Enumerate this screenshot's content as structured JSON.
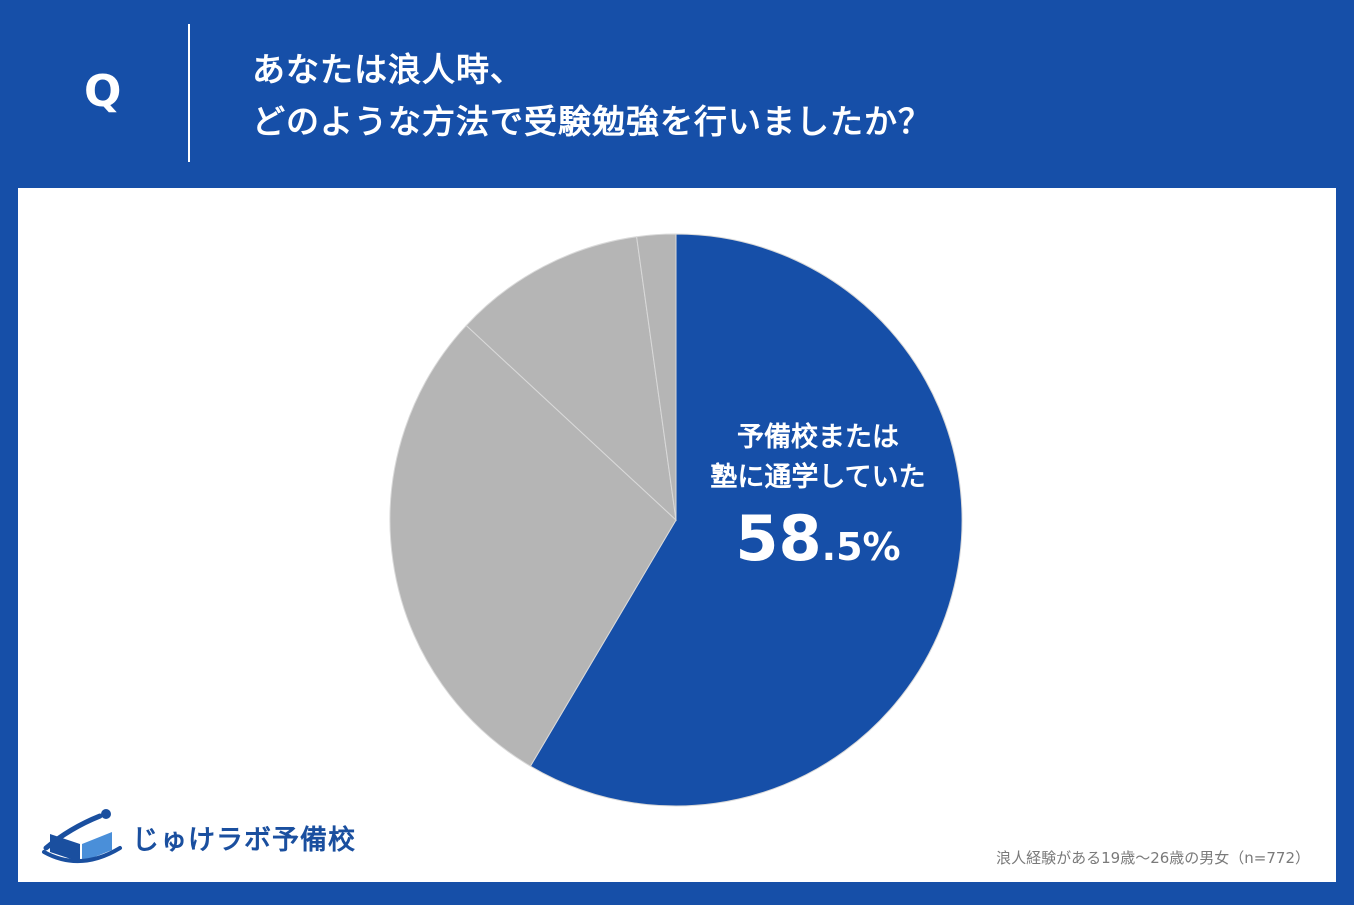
{
  "header": {
    "q_label": "Q",
    "question_line1": "あなたは浪人時、",
    "question_line2": "どのような方法で受験勉強を行いましたか？"
  },
  "chart_data": {
    "type": "pie",
    "slices": [
      {
        "label_lines": [
          "予備校または",
          "塾に通学していた"
        ],
        "value_main": "58",
        "value_decimal": ".5",
        "value_unit": "%",
        "value": 58.5,
        "color": "#164fa8"
      },
      {
        "value": 28.4,
        "color": "#b5b5b5"
      },
      {
        "value": 10.9,
        "color": "#b5b5b5"
      },
      {
        "value": 2.2,
        "color": "#b5b5b5"
      }
    ]
  },
  "footer": {
    "logo_text": "じゅけラボ予備校",
    "note": "浪人経験がある19歳～26歳の男女（n=772）"
  },
  "colors": {
    "brand_blue": "#164fa8",
    "gray_slice": "#b5b5b5",
    "logo_blue": "#1a4f9f"
  }
}
